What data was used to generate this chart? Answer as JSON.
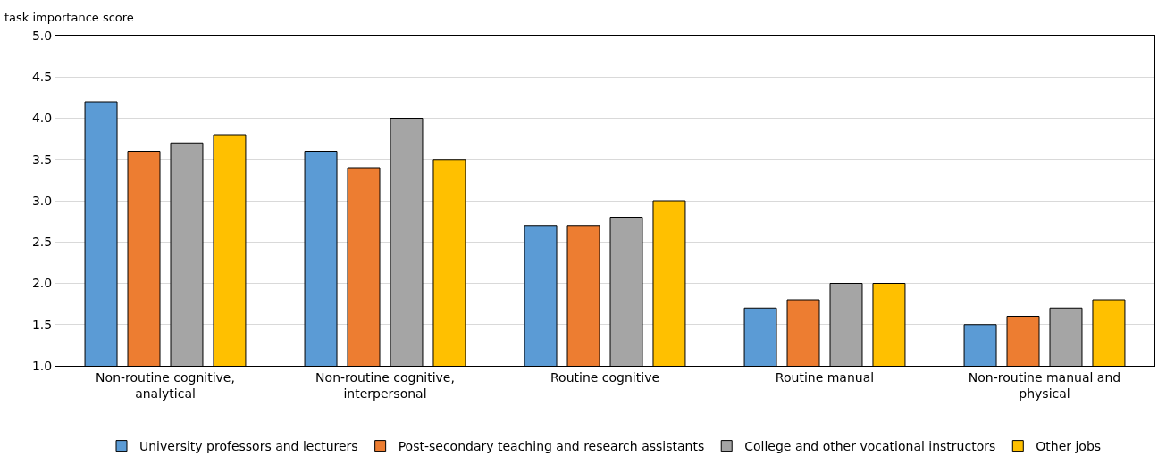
{
  "chart_data": {
    "type": "bar",
    "ylabel": "task importance score",
    "categories": [
      "Non-routine cognitive, analytical",
      "Non-routine cognitive, interpersonal",
      "Routine cognitive",
      "Routine manual",
      "Non-routine manual and physical"
    ],
    "series": [
      {
        "name": "University professors and lecturers",
        "color": "#5b9bd5",
        "values": [
          4.2,
          3.6,
          2.7,
          1.7,
          1.5
        ]
      },
      {
        "name": "Post-secondary teaching and research assistants",
        "color": "#ed7d31",
        "values": [
          3.6,
          3.4,
          2.7,
          1.8,
          1.6
        ]
      },
      {
        "name": "College and other vocational instructors",
        "color": "#a5a5a5",
        "values": [
          3.7,
          4.0,
          2.8,
          2.0,
          1.7
        ]
      },
      {
        "name": "Other jobs",
        "color": "#ffc000",
        "values": [
          3.8,
          3.5,
          3.0,
          2.0,
          1.8
        ]
      }
    ],
    "ylim": [
      1.0,
      5.0
    ],
    "yticks": [
      {
        "value": 1.0,
        "label": "1.0"
      },
      {
        "value": 1.5,
        "label": "1.5"
      },
      {
        "value": 2.0,
        "label": "2.0"
      },
      {
        "value": 2.5,
        "label": "2.5"
      },
      {
        "value": 3.0,
        "label": "3.0"
      },
      {
        "value": 3.5,
        "label": "3.5"
      },
      {
        "value": 4.0,
        "label": "4.0"
      },
      {
        "value": 4.5,
        "label": "4.5"
      },
      {
        "value": 5.0,
        "label": "5.0"
      }
    ],
    "grid": "y",
    "legend": "bottom"
  }
}
